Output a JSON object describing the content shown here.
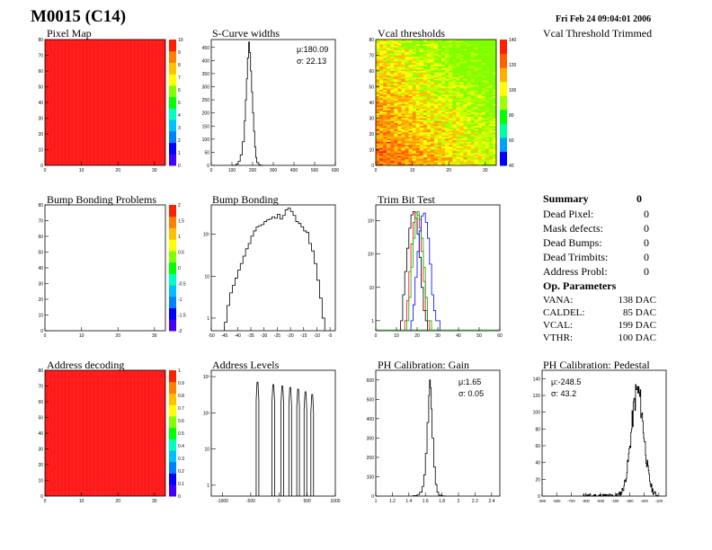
{
  "header": {
    "title": "M0015 (C14)",
    "timestamp": "Fri Feb 24 09:04:01 2006"
  },
  "colors": {
    "red": "#ff1a1a",
    "frame": "#000000",
    "hist": "#000000",
    "blue": "#0000ff",
    "green": "#00b000"
  },
  "chart_data": [
    {
      "id": "pixel-map",
      "type": "heatmap",
      "title": "Pixel Map",
      "x_ticks": [
        0,
        10,
        20,
        30,
        40,
        50,
        60,
        70,
        80
      ],
      "y_ticks": [
        0,
        10,
        20,
        30,
        40,
        50,
        60,
        70,
        80
      ],
      "x_tick_labels": [
        "0",
        "10",
        "20",
        "30"
      ],
      "y_tick_labels": [
        "0",
        "10",
        "20",
        "30",
        "40",
        "50",
        "60",
        "70",
        "80"
      ],
      "xlim": [
        0,
        33
      ],
      "ylim": [
        0,
        80
      ],
      "colorbar_labels": [
        "0",
        "1",
        "2",
        "3",
        "4",
        "5",
        "6",
        "7",
        "8",
        "9",
        "10"
      ],
      "value": 10
    },
    {
      "id": "scurve-widths",
      "type": "line",
      "title": "S-Curve widths",
      "x_tick_labels": [
        "0",
        "100",
        "200",
        "300",
        "400",
        "500",
        "600"
      ],
      "y_tick_labels": [
        "0",
        "50",
        "100",
        "150",
        "200",
        "250",
        "300",
        "350",
        "400",
        "450"
      ],
      "xlim": [
        0,
        600
      ],
      "ylim": [
        0,
        480
      ],
      "stats": {
        "mean": "μ:180.09",
        "sigma": "σ: 22.13"
      },
      "x": [
        100,
        120,
        130,
        140,
        150,
        160,
        165,
        170,
        175,
        180,
        185,
        190,
        195,
        200,
        205,
        210,
        215,
        220,
        230,
        240
      ],
      "y": [
        0,
        5,
        15,
        40,
        90,
        170,
        250,
        330,
        410,
        470,
        430,
        360,
        280,
        200,
        130,
        70,
        30,
        10,
        2,
        0
      ]
    },
    {
      "id": "vcal-thresholds",
      "type": "heatmap",
      "title": "Vcal thresholds",
      "x_tick_labels": [
        "0",
        "10",
        "20",
        "30",
        "40",
        "50",
        "60",
        "70",
        "80"
      ],
      "x_axis_labels": [
        "0",
        "10",
        "20",
        "30"
      ],
      "y_tick_labels": [
        "0",
        "10",
        "20",
        "30",
        "40",
        "50",
        "60",
        "70",
        "80"
      ],
      "xlim": [
        0,
        33
      ],
      "ylim": [
        0,
        80
      ],
      "colorbar_labels": [
        "40",
        "60",
        "80",
        "100",
        "120",
        "140"
      ],
      "zlim": [
        40,
        150
      ]
    },
    {
      "id": "bump-bonding-problems",
      "type": "heatmap",
      "title": "Bump Bonding Problems",
      "x_tick_labels": [
        "0",
        "10",
        "20",
        "30"
      ],
      "y_tick_labels": [
        "0",
        "10",
        "20",
        "30",
        "40",
        "50",
        "60",
        "70",
        "80"
      ],
      "xlim": [
        0,
        33
      ],
      "ylim": [
        0,
        80
      ],
      "colorbar_labels": [
        "-2",
        "-1.5",
        "-1",
        "-0.5",
        "0",
        "0.5",
        "1",
        "1.5",
        "2"
      ]
    },
    {
      "id": "bump-bonding",
      "type": "line",
      "title": "Bump Bonding",
      "x_tick_labels": [
        "-50",
        "-45",
        "-40",
        "-35",
        "-30",
        "-25",
        "-20",
        "-15",
        "-10",
        "-5"
      ],
      "y_tick_labels": [
        "1",
        "10",
        "10²"
      ],
      "xlim": [
        -50,
        -3
      ],
      "ylim_log": [
        0.5,
        500
      ],
      "x": [
        -45,
        -44,
        -43,
        -42,
        -41,
        -40,
        -39,
        -38,
        -37,
        -36,
        -35,
        -34,
        -33,
        -32,
        -31,
        -30,
        -29,
        -28,
        -27,
        -26,
        -25,
        -24,
        -23,
        -22,
        -21,
        -20,
        -19,
        -18,
        -17,
        -16,
        -15,
        -14,
        -13,
        -12,
        -11,
        -10,
        -9,
        -8
      ],
      "y": [
        0.8,
        2,
        4,
        6,
        9,
        14,
        20,
        30,
        45,
        60,
        90,
        120,
        150,
        160,
        170,
        200,
        220,
        230,
        260,
        240,
        300,
        230,
        280,
        380,
        420,
        350,
        280,
        200,
        180,
        150,
        120,
        110,
        60,
        40,
        20,
        8,
        3,
        1
      ]
    },
    {
      "id": "trim-bit-test",
      "type": "line",
      "title": "Trim Bit Test",
      "x_tick_labels": [
        "0",
        "10",
        "20",
        "30",
        "40",
        "50",
        "60"
      ],
      "y_tick_labels": [
        "1",
        "10",
        "10²",
        "10³"
      ],
      "xlim": [
        0,
        60
      ],
      "ylim_log": [
        0.5,
        3000
      ],
      "series": [
        {
          "color": "#000000",
          "x": [
            12,
            13,
            14,
            15,
            16,
            17,
            18,
            19,
            20,
            21,
            22,
            23,
            24
          ],
          "y": [
            1,
            6,
            30,
            150,
            600,
            1500,
            1900,
            1200,
            400,
            80,
            10,
            2,
            1
          ]
        },
        {
          "color": "#ff0000",
          "x": [
            14,
            15,
            16,
            17,
            18,
            19,
            20,
            21,
            22,
            23,
            24,
            25
          ],
          "y": [
            1,
            4,
            30,
            200,
            900,
            1800,
            1500,
            600,
            120,
            15,
            2,
            1
          ]
        },
        {
          "color": "#00b000",
          "x": [
            15,
            16,
            17,
            18,
            19,
            20,
            21,
            22,
            23,
            24,
            25,
            26
          ],
          "y": [
            1,
            5,
            40,
            300,
            1200,
            1900,
            1100,
            300,
            40,
            5,
            1,
            1
          ]
        },
        {
          "color": "#0000ff",
          "x": [
            17,
            18,
            19,
            20,
            21,
            22,
            23,
            24,
            25,
            26,
            27,
            28,
            29,
            30
          ],
          "y": [
            1,
            3,
            20,
            120,
            500,
            1400,
            1700,
            900,
            300,
            50,
            6,
            2,
            1,
            1
          ]
        }
      ]
    },
    {
      "id": "address-decoding",
      "type": "heatmap",
      "title": "Address decoding",
      "x_tick_labels": [
        "0",
        "10",
        "20",
        "30"
      ],
      "y_tick_labels": [
        "0",
        "10",
        "20",
        "30",
        "40",
        "50",
        "60",
        "70",
        "80"
      ],
      "xlim": [
        0,
        33
      ],
      "ylim": [
        0,
        80
      ],
      "colorbar_labels": [
        "0",
        "0.1",
        "0.2",
        "0.3",
        "0.4",
        "0.5",
        "0.6",
        "0.7",
        "0.8",
        "0.9",
        "1"
      ],
      "value": 1
    },
    {
      "id": "address-levels",
      "type": "line",
      "title": "Address Levels",
      "x_tick_labels": [
        "-1000",
        "-500",
        "0",
        "500",
        "1000"
      ],
      "y_tick_labels": [
        "1",
        "10",
        "10²",
        "10³"
      ],
      "xlim": [
        -1200,
        1000
      ],
      "ylim_log": [
        0.5,
        1500
      ],
      "peaks": [
        {
          "x": -380,
          "y": 700
        },
        {
          "x": -100,
          "y": 600
        },
        {
          "x": 60,
          "y": 550
        },
        {
          "x": 200,
          "y": 500
        },
        {
          "x": 340,
          "y": 450
        },
        {
          "x": 470,
          "y": 380
        },
        {
          "x": 590,
          "y": 320
        }
      ]
    },
    {
      "id": "ph-gain",
      "type": "line",
      "title": "PH Calibration: Gain",
      "x_tick_labels": [
        "1",
        "1.2",
        "1.4",
        "1.6",
        "1.8",
        "2",
        "2.2",
        "2.4"
      ],
      "y_tick_labels": [
        "0",
        "100",
        "200",
        "300",
        "400",
        "500",
        "600"
      ],
      "xlim": [
        1,
        2.5
      ],
      "ylim": [
        0,
        650
      ],
      "stats": {
        "mean": "μ:1.65",
        "sigma": "σ: 0.05"
      },
      "x": [
        1.45,
        1.5,
        1.53,
        1.56,
        1.58,
        1.6,
        1.62,
        1.64,
        1.65,
        1.66,
        1.67,
        1.68,
        1.7,
        1.72,
        1.74,
        1.76,
        1.8
      ],
      "y": [
        2,
        8,
        20,
        50,
        110,
        220,
        380,
        520,
        600,
        560,
        450,
        300,
        150,
        60,
        20,
        5,
        1
      ]
    },
    {
      "id": "ph-pedestal",
      "type": "line",
      "title": "PH Calibration: Pedestal",
      "x_tick_labels": [
        "-900",
        "-800",
        "-700",
        "-600",
        "-500",
        "-400",
        "-300",
        "-200",
        "-100"
      ],
      "y_tick_labels": [
        "0",
        "20",
        "40",
        "60",
        "80",
        "100",
        "120",
        "140"
      ],
      "xlim": [
        -900,
        -50
      ],
      "ylim": [
        0,
        150
      ],
      "stats": {
        "mean": "μ:-248.5",
        "sigma": "σ: 43.2"
      }
    }
  ],
  "summary": {
    "title": "Summary",
    "title_value": "0",
    "rows": [
      {
        "label": "Dead Pixel:",
        "value": "0"
      },
      {
        "label": "Mask defects:",
        "value": "0"
      },
      {
        "label": "Dead Bumps:",
        "value": "0"
      },
      {
        "label": "Dead Trimbits:",
        "value": "0"
      },
      {
        "label": "Address Probl:",
        "value": "0"
      }
    ]
  },
  "op_params": {
    "title": "Op. Parameters",
    "rows": [
      {
        "label": "VANA:",
        "value": "138 DAC"
      },
      {
        "label": "CALDEL:",
        "value": "85 DAC"
      },
      {
        "label": "VCAL:",
        "value": "199 DAC"
      },
      {
        "label": "VTHR:",
        "value": "100 DAC"
      }
    ]
  },
  "vcal_trimmed": {
    "title": "Vcal Threshold Trimmed"
  }
}
